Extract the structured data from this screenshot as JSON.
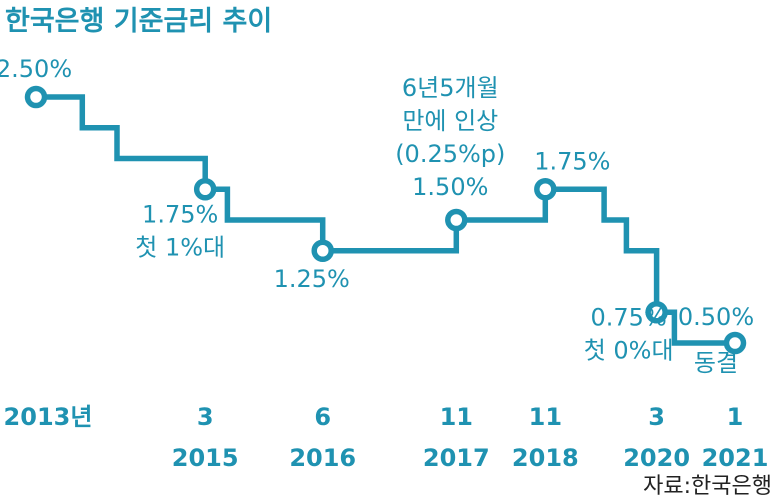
{
  "chart_data": {
    "type": "line",
    "title": "한국은행 기준금리 추이",
    "source": "자료:한국은행",
    "ylabel": "",
    "xlabel": "",
    "unit": "%",
    "grid": false,
    "legend": "none",
    "colors": {
      "line": "#1f92b1",
      "title": "#1f92b1",
      "label": "#1f92b1",
      "axis_text": "#1f92b1",
      "source": "#222222",
      "marker_fill": "#ffffff"
    },
    "step_path": [
      {
        "x": 2013.2,
        "y": 2.5
      },
      {
        "x": 2013.72,
        "y": 2.5
      },
      {
        "x": 2013.72,
        "y": 2.25
      },
      {
        "x": 2014.11,
        "y": 2.25
      },
      {
        "x": 2014.11,
        "y": 2.0
      },
      {
        "x": 2015.1,
        "y": 2.0
      },
      {
        "x": 2015.1,
        "y": 1.75
      },
      {
        "x": 2015.35,
        "y": 1.75
      },
      {
        "x": 2015.35,
        "y": 1.5
      },
      {
        "x": 2016.42,
        "y": 1.5
      },
      {
        "x": 2016.42,
        "y": 1.25
      },
      {
        "x": 2017.92,
        "y": 1.25
      },
      {
        "x": 2017.92,
        "y": 1.5
      },
      {
        "x": 2018.92,
        "y": 1.5
      },
      {
        "x": 2018.92,
        "y": 1.75
      },
      {
        "x": 2019.58,
        "y": 1.75
      },
      {
        "x": 2019.58,
        "y": 1.5
      },
      {
        "x": 2019.83,
        "y": 1.5
      },
      {
        "x": 2019.83,
        "y": 1.25
      },
      {
        "x": 2020.17,
        "y": 1.25
      },
      {
        "x": 2020.17,
        "y": 0.75
      },
      {
        "x": 2020.37,
        "y": 0.75
      },
      {
        "x": 2020.37,
        "y": 0.5
      },
      {
        "x": 2021.05,
        "y": 0.5
      }
    ],
    "points": [
      {
        "x": 2013.2,
        "y": 2.5,
        "label": "2.50%",
        "note": []
      },
      {
        "x": 2015.1,
        "y": 1.75,
        "label": "1.75%",
        "note": [
          "첫 1%대"
        ]
      },
      {
        "x": 2016.42,
        "y": 1.25,
        "label": "1.25%",
        "note": []
      },
      {
        "x": 2017.92,
        "y": 1.5,
        "label": "1.50%",
        "note": [
          "6년5개월",
          "만에 인상",
          "(0.25%p)"
        ]
      },
      {
        "x": 2018.92,
        "y": 1.75,
        "label": "1.75%",
        "note": []
      },
      {
        "x": 2020.17,
        "y": 0.75,
        "label": "0.75%",
        "note": [
          "첫 0%대"
        ]
      },
      {
        "x": 2021.05,
        "y": 0.5,
        "label": "0.50%",
        "note": [
          "동결"
        ]
      }
    ],
    "x_ticks": [
      {
        "x": 2013.2,
        "month": "2013년",
        "year": ""
      },
      {
        "x": 2015.1,
        "month": "3",
        "year": "2015"
      },
      {
        "x": 2016.42,
        "month": "6",
        "year": "2016"
      },
      {
        "x": 2017.92,
        "month": "11",
        "year": "2017"
      },
      {
        "x": 2018.92,
        "month": "11",
        "year": "2018"
      },
      {
        "x": 2020.17,
        "month": "3",
        "year": "2020"
      },
      {
        "x": 2021.05,
        "month": "1",
        "year": "2021"
      }
    ],
    "xlim": [
      2013.2,
      2021.05
    ],
    "ylim": [
      0.5,
      2.5
    ]
  }
}
